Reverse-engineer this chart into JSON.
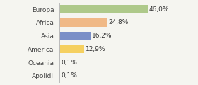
{
  "categories": [
    "Europa",
    "Africa",
    "Asia",
    "America",
    "Oceania",
    "Apolidi"
  ],
  "values": [
    46.0,
    24.8,
    16.2,
    12.9,
    0.1,
    0.1
  ],
  "bar_colors": [
    "#aec98a",
    "#f0b987",
    "#7b8fc7",
    "#f5d060",
    "#f5f5f0",
    "#f5f5f0"
  ],
  "labels": [
    "46,0%",
    "24,8%",
    "16,2%",
    "12,9%",
    "0,1%",
    "0,1%"
  ],
  "xlim": [
    0,
    60
  ],
  "background_color": "#f5f5f0",
  "bar_height": 0.62,
  "label_fontsize": 6.5,
  "tick_fontsize": 6.5,
  "figsize": [
    2.8,
    1.2
  ],
  "dpi": 100
}
